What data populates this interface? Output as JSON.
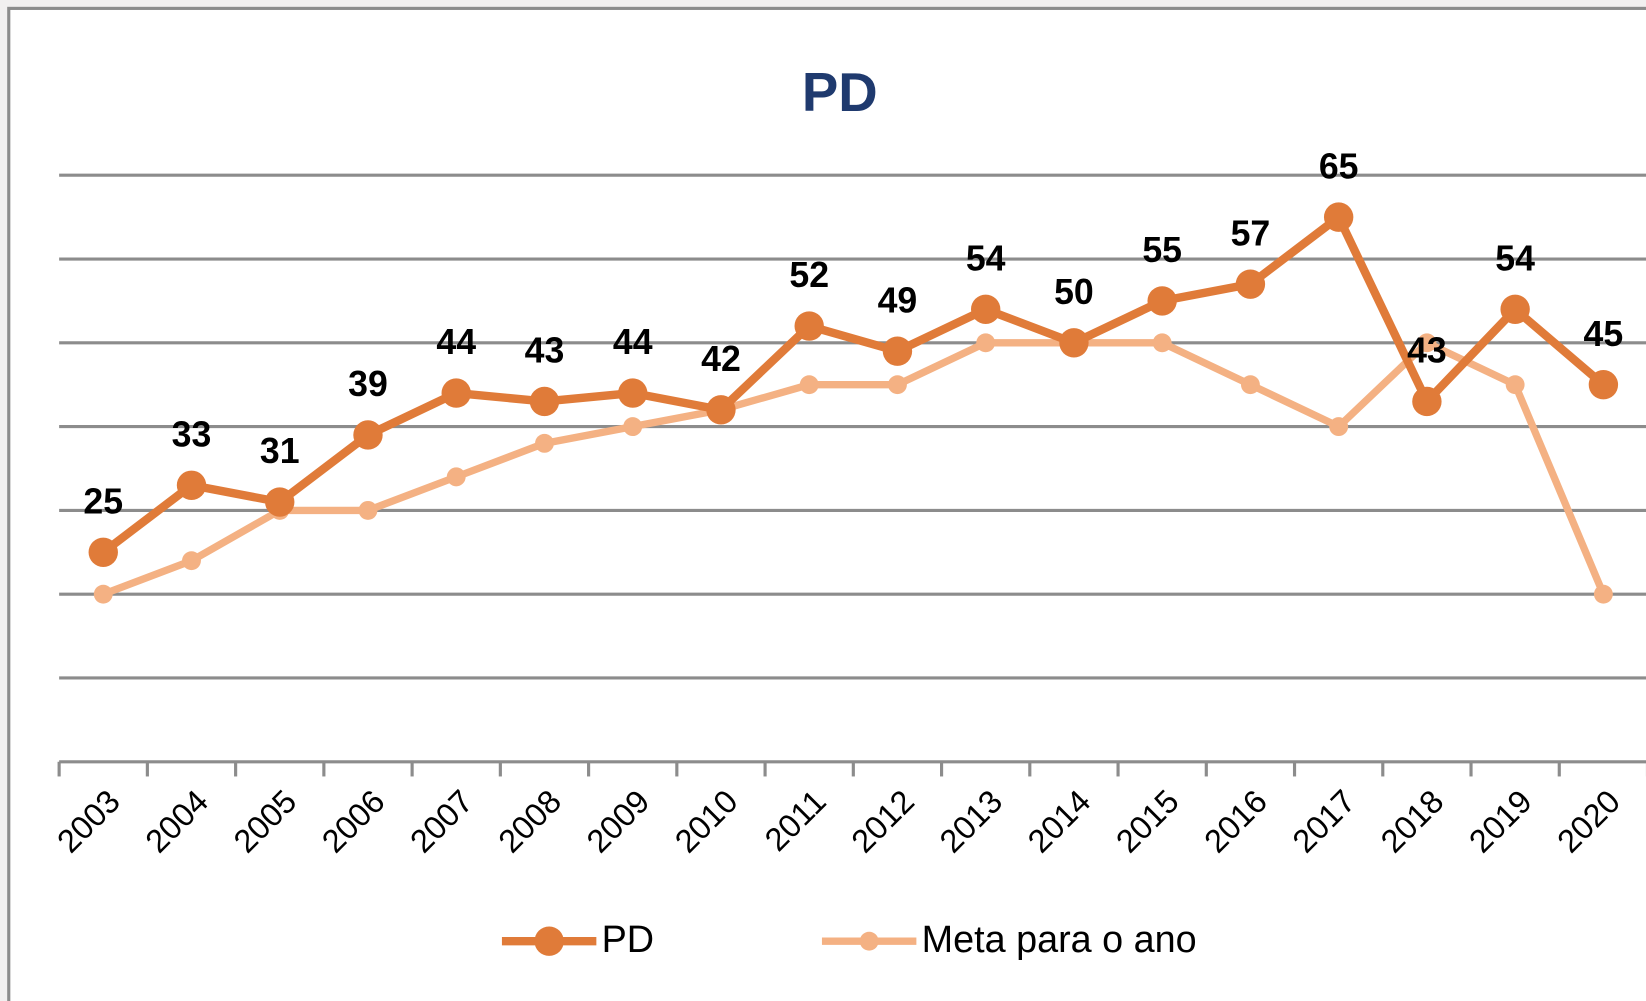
{
  "chart_data": {
    "type": "line",
    "title": "PD",
    "categories": [
      "2003",
      "2004",
      "2005",
      "2006",
      "2007",
      "2008",
      "2009",
      "2010",
      "2011",
      "2012",
      "2013",
      "2014",
      "2015",
      "2016",
      "2017",
      "2018",
      "2019",
      "2020"
    ],
    "series": [
      {
        "name": "PD",
        "color": "#e07b39",
        "values": [
          25,
          33,
          31,
          39,
          44,
          43,
          44,
          42,
          52,
          49,
          54,
          50,
          55,
          57,
          65,
          43,
          54,
          45
        ]
      },
      {
        "name": "Meta para o ano",
        "color": "#f4b183",
        "values": [
          20,
          24,
          30,
          30,
          34,
          38,
          40,
          42,
          45,
          45,
          50,
          50,
          50,
          45,
          40,
          50,
          45,
          20
        ]
      }
    ],
    "ylim": [
      0,
      70
    ],
    "yticks": [
      0,
      10,
      20,
      30,
      40,
      50,
      60,
      70
    ],
    "grid": true,
    "legend": "bottom"
  }
}
